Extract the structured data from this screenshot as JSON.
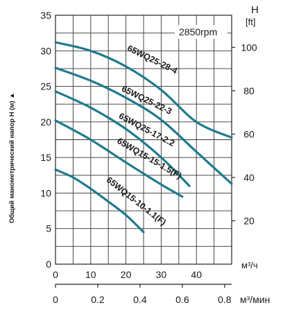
{
  "chart_data": {
    "type": "line",
    "title": "",
    "xlabel": "м³/ч",
    "x2label": "м³/мин",
    "ylabel": "Общий манометрический напор H (м) ▲",
    "y2label_top": "H",
    "y2label_unit": "[ft]",
    "annotation": "2850rpm",
    "xlim": [
      0,
      50
    ],
    "ylim": [
      0,
      35
    ],
    "x_ticks": [
      "0",
      "10",
      "20",
      "30",
      "40"
    ],
    "x2_ticks": [
      "0",
      "0.2",
      "0.4",
      "0.6",
      "0.8"
    ],
    "y_ticks": [
      "0",
      "5",
      "10",
      "15",
      "20",
      "25",
      "30",
      "35"
    ],
    "y2_ticks": [
      "20",
      "40",
      "60",
      "80",
      "100"
    ],
    "grid": true,
    "series": [
      {
        "name": "65WQ25-28-4",
        "x": [
          0,
          10,
          20,
          30,
          40,
          50
        ],
        "y": [
          31.2,
          30.0,
          27.8,
          24.5,
          20.0,
          17.8
        ]
      },
      {
        "name": "65WQ25-22-3",
        "x": [
          0,
          10,
          20,
          30,
          40,
          50
        ],
        "y": [
          27.6,
          25.8,
          23.4,
          20.3,
          15.8,
          11.3
        ]
      },
      {
        "name": "65WQ25-17-2.2",
        "x": [
          0,
          10,
          20,
          30,
          38
        ],
        "y": [
          24.3,
          22.0,
          19.0,
          15.0,
          11.0
        ]
      },
      {
        "name": "65WQ15-15-1.5(F)",
        "x": [
          0,
          10,
          20,
          30,
          36
        ],
        "y": [
          20.2,
          17.5,
          14.3,
          11.2,
          9.5
        ]
      },
      {
        "name": "65WQ15-10-1.1(F)",
        "x": [
          0,
          5,
          10,
          15,
          20,
          25
        ],
        "y": [
          13.3,
          12.2,
          10.6,
          8.8,
          6.9,
          4.5
        ]
      }
    ],
    "colors": {
      "curve": "#1e7a8c"
    }
  }
}
